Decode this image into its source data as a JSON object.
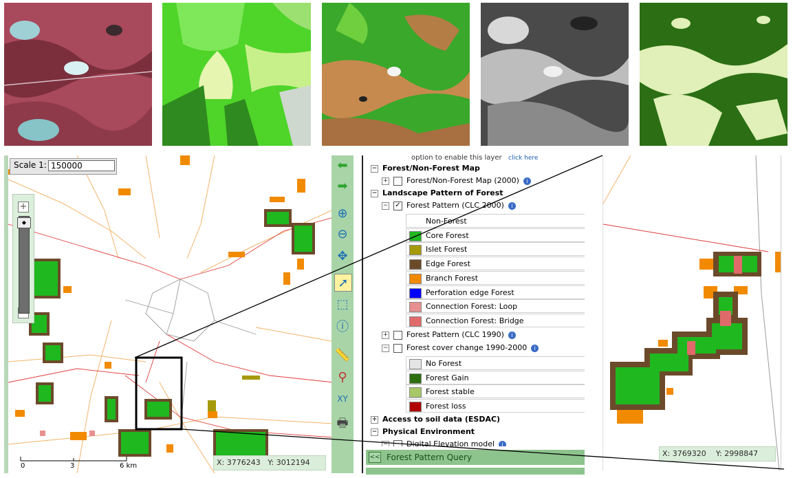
{
  "map": {
    "scale_label": "Scale 1:",
    "scale_value": "150000",
    "coords_x": "X: 3776243",
    "coords_y": "Y: 3012194",
    "scalebar": [
      "0",
      "3",
      "6 km"
    ]
  },
  "legend": {
    "hint_text": "option to enable this layer",
    "hint_link": "click here",
    "groups": {
      "forest_nonforest": "Forest/Non-Forest Map",
      "fnf_layer": "Forest/Non-Forest Map (2000)",
      "landscape": "Landscape Pattern of Forest",
      "pattern2000": "Forest Pattern (CLC 2000)",
      "pattern1990": "Forest Pattern (CLC 1990)",
      "cover_change": "Forest cover change 1990-2000",
      "soil": "Access to soil data (ESDAC)",
      "physical": "Physical Environment",
      "dem": "Digital Elevation model"
    },
    "pattern_classes": [
      {
        "label": "Non-Forest",
        "color": "#ffffff"
      },
      {
        "label": "Core Forest",
        "color": "#1fb81f"
      },
      {
        "label": "Islet Forest",
        "color": "#a59a0a"
      },
      {
        "label": "Edge Forest",
        "color": "#6b4a2a"
      },
      {
        "label": "Branch Forest",
        "color": "#f28a00"
      },
      {
        "label": "Perforation edge Forest",
        "color": "#0000ff"
      },
      {
        "label": "Connection Forest: Loop",
        "color": "#e89090"
      },
      {
        "label": "Connection Forest: Bridge",
        "color": "#e06a6a"
      }
    ],
    "change_classes": [
      {
        "label": "No Forest",
        "color": "#e5e5e5"
      },
      {
        "label": "Forest Gain",
        "color": "#2d6e0f"
      },
      {
        "label": "Forest stable",
        "color": "#a8c868"
      },
      {
        "label": "Forest loss",
        "color": "#b00000"
      }
    ],
    "query_label": "Forest Pattern Query",
    "query_button": "<<"
  },
  "zoomview": {
    "coords_x": "X: 3769320",
    "coords_y": "Y: 2998847"
  },
  "colors": {
    "panel_green": "#a8d4a8",
    "core": "#1fb81f",
    "edge": "#6b4a2a",
    "branch": "#f28a00",
    "bridge": "#e06a6a"
  }
}
